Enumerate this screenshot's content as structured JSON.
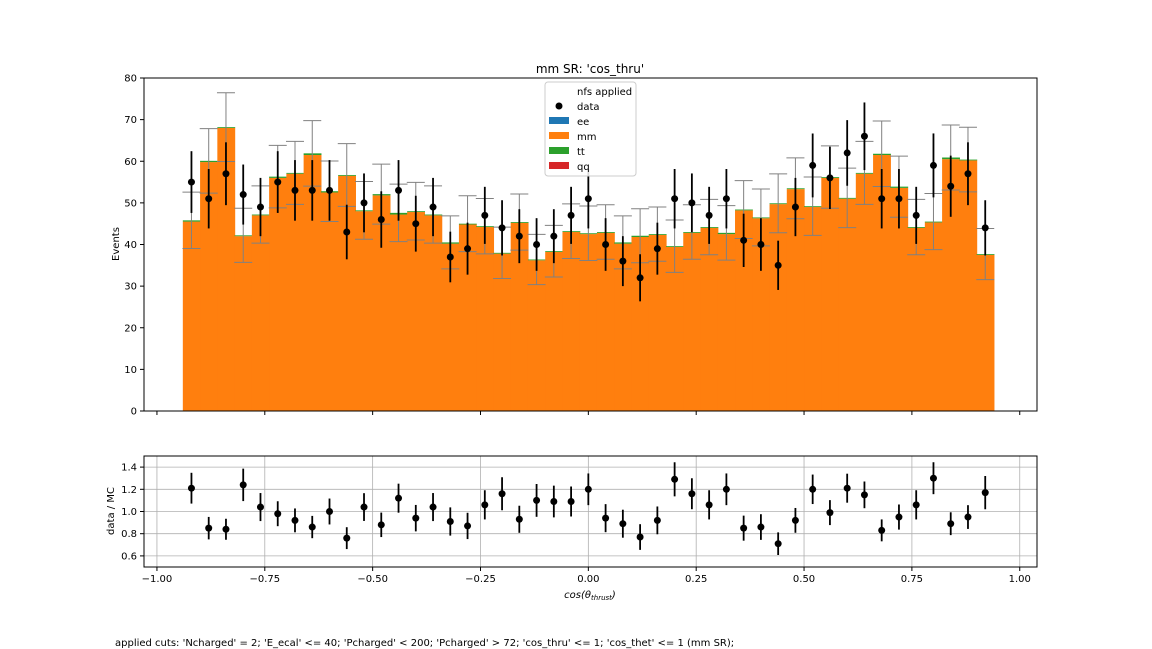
{
  "chart_data": {
    "type": "bar",
    "title": "mm SR: 'cos_thru'",
    "xlabel": "cos(θ_thrust)",
    "xlabel_main": "cos(θ",
    "xlabel_sub": "thrust",
    "xlabel_close": ")",
    "ylabel": "Events",
    "ratio_ylabel": "data / MC",
    "xlim": [
      -1.03,
      1.04
    ],
    "ylim": [
      0,
      80
    ],
    "ratio_ylim": [
      0.5,
      1.5
    ],
    "xticks": [
      "−1.00",
      "−0.75",
      "−0.50",
      "−0.25",
      "0.00",
      "0.25",
      "0.50",
      "0.75",
      "1.00"
    ],
    "yticks": [
      "0",
      "10",
      "20",
      "30",
      "40",
      "50",
      "60",
      "70",
      "80"
    ],
    "ratio_yticks": [
      "0.6",
      "0.8",
      "1.0",
      "1.2",
      "1.4"
    ],
    "grid_ratio": true,
    "legend": {
      "placement": "upper center",
      "title": "nfs applied",
      "entries": [
        {
          "label": "data",
          "color": "#000000",
          "marker": "point"
        },
        {
          "label": "ee",
          "color": "#1f77b4"
        },
        {
          "label": "mm",
          "color": "#ff7f0e"
        },
        {
          "label": "tt",
          "color": "#2ca02c"
        },
        {
          "label": "qq",
          "color": "#d62728"
        }
      ]
    },
    "bin_edges_range": [
      -0.94,
      0.94
    ],
    "bin_width": 0.04,
    "bin_centers": [
      -0.92,
      -0.88,
      -0.84,
      -0.8,
      -0.76,
      -0.72,
      -0.68,
      -0.64,
      -0.6,
      -0.56,
      -0.52,
      -0.48,
      -0.44,
      -0.4,
      -0.36,
      -0.32,
      -0.28,
      -0.24,
      -0.2,
      -0.16,
      -0.12,
      -0.08,
      -0.04,
      0.0,
      0.04,
      0.08,
      0.12,
      0.16,
      0.2,
      0.24,
      0.28,
      0.32,
      0.36,
      0.4,
      0.44,
      0.48,
      0.52,
      0.56,
      0.6,
      0.64,
      0.68,
      0.72,
      0.76,
      0.8,
      0.84,
      0.88,
      0.92
    ],
    "series": [
      {
        "name": "mm",
        "color": "#ff7f0e",
        "values": [
          45.5,
          59.8,
          68,
          42,
          47,
          56,
          57,
          61.5,
          52.5,
          56.5,
          48,
          51.8,
          47.2,
          47.8,
          47,
          40.2,
          44.8,
          44.2,
          37.8,
          45.2,
          36.2,
          38.2,
          43,
          42.5,
          42.8,
          40.2,
          41.8,
          42.3,
          39.4,
          42.8,
          44,
          42.5,
          48.2,
          46.3,
          49.7,
          53.3,
          49,
          56,
          51,
          57,
          61.5,
          53.6,
          44,
          45.3,
          60.5,
          60.2,
          37.5
        ]
      },
      {
        "name": "tt",
        "color": "#2ca02c",
        "values": [
          0.3,
          0.3,
          0.2,
          0.2,
          0.2,
          0.3,
          0.2,
          0.4,
          0.3,
          0.2,
          0.2,
          0.3,
          0.4,
          0.2,
          0.2,
          0.3,
          0.2,
          0.2,
          0.2,
          0.2,
          0.2,
          0.2,
          0.2,
          0.2,
          0.2,
          0.3,
          0.3,
          0.2,
          0.2,
          0.2,
          0.2,
          0.3,
          0.2,
          0.2,
          0.2,
          0.2,
          0.2,
          0.2,
          0.2,
          0.2,
          0.3,
          0.3,
          0.2,
          0.2,
          0.4,
          0.2,
          0.2
        ]
      },
      {
        "name": "data",
        "color": "#000000",
        "values": [
          55,
          51,
          57,
          52,
          49,
          55,
          53,
          53,
          53,
          43,
          50,
          46,
          53,
          45,
          49,
          37,
          39,
          47,
          44,
          42,
          40,
          42,
          47,
          51,
          40,
          36,
          32,
          39,
          51,
          50,
          47,
          51,
          41,
          40,
          35,
          49,
          59,
          56,
          62,
          66,
          51,
          51,
          47,
          59,
          54,
          57,
          44
        ]
      }
    ],
    "ratio": [
      1.21,
      0.85,
      0.84,
      1.24,
      1.04,
      0.98,
      0.92,
      0.86,
      1.0,
      0.76,
      1.04,
      0.88,
      1.12,
      0.94,
      1.04,
      0.91,
      0.87,
      1.06,
      1.16,
      0.93,
      1.1,
      1.09,
      1.09,
      1.2,
      0.94,
      0.89,
      0.77,
      0.92,
      1.29,
      1.16,
      1.06,
      1.2,
      0.85,
      0.86,
      0.71,
      0.92,
      1.2,
      0.99,
      1.21,
      1.15,
      0.83,
      0.95,
      1.06,
      1.3,
      0.89,
      0.95,
      1.17
    ]
  },
  "footer": {
    "cuts_text": "applied cuts: 'Ncharged' = 2; 'E_ecal' <= 40; 'Pcharged' < 200; 'Pcharged' > 72; 'cos_thru' <= 1; 'cos_thet' <= 1 (mm SR);"
  }
}
